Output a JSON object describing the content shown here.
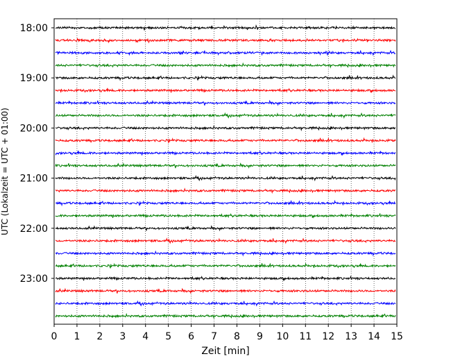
{
  "chart_data": {
    "type": "line",
    "xlabel": "Zeit  [min]",
    "ylabel": "UTC (Lokalzeit = UTC + 01:00)",
    "xlim": [
      0,
      15
    ],
    "x_ticks": [
      "0",
      "1",
      "2",
      "3",
      "4",
      "5",
      "6",
      "7",
      "8",
      "9",
      "10",
      "11",
      "12",
      "13",
      "14",
      "15"
    ],
    "y_ticks": [
      "18:00",
      "19:00",
      "20:00",
      "21:00",
      "22:00",
      "23:00"
    ],
    "grid": "vertical dotted at each minute",
    "trace_interval_minutes": 15,
    "traces_count": 24,
    "trace_start": "18:00",
    "trace_end": "23:45",
    "color_cycle": [
      "#000000",
      "#ff0000",
      "#0000ff",
      "#008000"
    ]
  }
}
